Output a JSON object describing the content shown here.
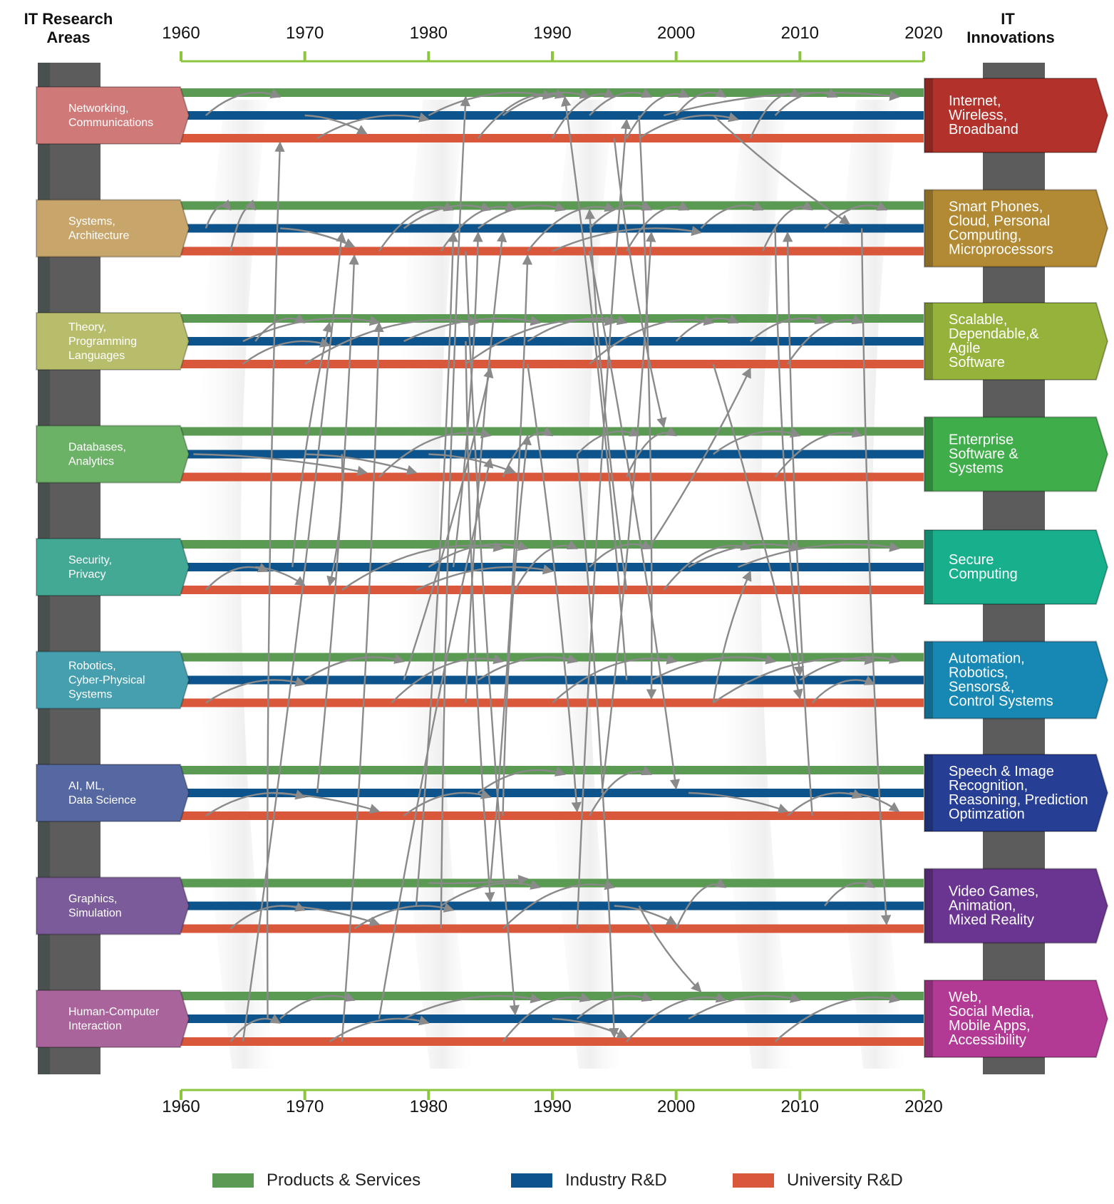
{
  "headers": {
    "left_line1": "IT Research",
    "left_line2": "Areas",
    "right_line1": "IT",
    "right_line2": "Innovations"
  },
  "years": [
    "1960",
    "1970",
    "1980",
    "1990",
    "2000",
    "2010",
    "2020"
  ],
  "colors": {
    "products": "#5a9a52",
    "industry": "#0d548c",
    "university": "#d9573a",
    "axis": "#8cc63f",
    "arrow": "#8a8a8a",
    "column": "#5c5c5c"
  },
  "rows": [
    {
      "area": [
        "Networking,",
        "Communications"
      ],
      "area_color": "#cf7a78",
      "innovation": [
        "Internet,",
        "Wireless,",
        "Broadband"
      ],
      "innovation_color": "#b2312a"
    },
    {
      "area": [
        "Systems,",
        "Architecture"
      ],
      "area_color": "#c8a66b",
      "innovation": [
        "Smart Phones,",
        "Cloud, Personal",
        "Computing,",
        "Microprocessors"
      ],
      "innovation_color": "#b18a33"
    },
    {
      "area": [
        "Theory,",
        "Programming",
        "Languages"
      ],
      "area_color": "#b8bd6c",
      "innovation": [
        "Scalable,",
        "Dependable,&",
        "Agile",
        "Software"
      ],
      "innovation_color": "#95b33a"
    },
    {
      "area": [
        "Databases,",
        "Analytics"
      ],
      "area_color": "#6bb266",
      "innovation": [
        "Enterprise",
        "Software &",
        "Systems"
      ],
      "innovation_color": "#3fae4a"
    },
    {
      "area": [
        "Security,",
        "Privacy"
      ],
      "area_color": "#43a894",
      "innovation": [
        "Secure",
        "Computing"
      ],
      "innovation_color": "#18af8d"
    },
    {
      "area": [
        "Robotics,",
        "Cyber-Physical",
        "Systems"
      ],
      "area_color": "#459fae",
      "innovation": [
        "Automation,",
        "Robotics,",
        "Sensors&,",
        "Control Systems"
      ],
      "innovation_color": "#1688b3"
    },
    {
      "area": [
        "AI, ML,",
        "Data Science"
      ],
      "area_color": "#5568a2",
      "innovation": [
        "Speech & Image",
        "Recognition,",
        "Reasoning, Prediction",
        "Optimzation"
      ],
      "innovation_color": "#273e95"
    },
    {
      "area": [
        "Graphics,",
        "Simulation"
      ],
      "area_color": "#7b5b99",
      "innovation": [
        "Video Games,",
        "Animation,",
        "Mixed Reality"
      ],
      "innovation_color": "#6a3590"
    },
    {
      "area": [
        "Human-Computer",
        "Interaction"
      ],
      "area_color": "#a8649b",
      "innovation": [
        "Web,",
        "Social Media,",
        "Mobile Apps,",
        "Accessibility"
      ],
      "innovation_color": "#b23a95"
    }
  ],
  "legend": [
    {
      "label": "Products & Services",
      "color": "#5a9a52"
    },
    {
      "label": "Industry R&D",
      "color": "#0d548c"
    },
    {
      "label": "University R&D",
      "color": "#d9573a"
    }
  ],
  "links": [
    [
      0,
      1,
      1962,
      0,
      0,
      1968
    ],
    [
      0,
      1,
      1970,
      0,
      2,
      1975
    ],
    [
      0,
      2,
      1971,
      0,
      1,
      1980
    ],
    [
      0,
      1,
      1980,
      0,
      0,
      1990
    ],
    [
      0,
      2,
      1984,
      0,
      0,
      1991
    ],
    [
      0,
      1,
      1986,
      0,
      0,
      1993
    ],
    [
      0,
      2,
      1990,
      0,
      0,
      1995
    ],
    [
      0,
      1,
      1993,
      0,
      0,
      1998
    ],
    [
      0,
      2,
      1996,
      0,
      0,
      2001
    ],
    [
      0,
      1,
      2000,
      0,
      0,
      2004
    ],
    [
      0,
      2,
      2006,
      0,
      0,
      2010
    ],
    [
      0,
      1,
      2008,
      0,
      0,
      2013
    ],
    [
      0,
      2,
      1997,
      0,
      1,
      2005
    ],
    [
      0,
      1,
      1999,
      0,
      0,
      2018
    ],
    [
      0,
      1,
      2003,
      1,
      1,
      2014
    ],
    [
      1,
      1,
      1962,
      1,
      0,
      1964
    ],
    [
      1,
      2,
      1964,
      1,
      0,
      1966
    ],
    [
      1,
      1,
      1968,
      1,
      2,
      1974
    ],
    [
      1,
      2,
      1976,
      1,
      0,
      1982
    ],
    [
      1,
      1,
      1978,
      1,
      0,
      1985
    ],
    [
      1,
      2,
      1981,
      1,
      0,
      1987
    ],
    [
      1,
      1,
      1984,
      1,
      0,
      1991
    ],
    [
      1,
      2,
      1988,
      1,
      0,
      1995
    ],
    [
      1,
      1,
      1993,
      1,
      0,
      1998
    ],
    [
      1,
      2,
      1996,
      1,
      0,
      2001
    ],
    [
      1,
      1,
      2002,
      1,
      0,
      2007
    ],
    [
      1,
      2,
      2007,
      1,
      0,
      2011
    ],
    [
      1,
      1,
      2012,
      1,
      0,
      2017
    ],
    [
      1,
      2,
      1990,
      1,
      1,
      2002
    ],
    [
      2,
      1,
      1965,
      2,
      0,
      1976
    ],
    [
      2,
      1,
      1966,
      2,
      0,
      1970
    ],
    [
      2,
      2,
      1970,
      2,
      0,
      1984
    ],
    [
      2,
      1,
      1978,
      2,
      0,
      1989
    ],
    [
      2,
      2,
      1983,
      2,
      0,
      1995
    ],
    [
      2,
      1,
      1988,
      2,
      0,
      1996
    ],
    [
      2,
      2,
      1993,
      2,
      0,
      2003
    ],
    [
      2,
      1,
      2000,
      2,
      0,
      2005
    ],
    [
      2,
      1,
      2006,
      2,
      0,
      2012
    ],
    [
      2,
      2,
      2009,
      2,
      0,
      2015
    ],
    [
      2,
      2,
      1965,
      2,
      1,
      1972
    ],
    [
      3,
      1,
      1961,
      3,
      2,
      1975
    ],
    [
      3,
      2,
      1976,
      3,
      0,
      1985
    ],
    [
      3,
      1,
      1980,
      3,
      2,
      1987
    ],
    [
      3,
      2,
      1986,
      3,
      0,
      1990
    ],
    [
      3,
      1,
      1992,
      3,
      0,
      1997
    ],
    [
      3,
      2,
      1996,
      3,
      0,
      2000
    ],
    [
      3,
      1,
      2003,
      3,
      0,
      2010
    ],
    [
      3,
      2,
      2008,
      3,
      0,
      2015
    ],
    [
      3,
      1,
      1970,
      3,
      2,
      1979
    ],
    [
      4,
      2,
      1962,
      4,
      1,
      1967
    ],
    [
      4,
      1,
      1966,
      4,
      2,
      1970
    ],
    [
      4,
      2,
      1973,
      4,
      0,
      1986
    ],
    [
      4,
      1,
      1980,
      4,
      0,
      1988
    ],
    [
      4,
      2,
      1987,
      4,
      0,
      1992
    ],
    [
      4,
      1,
      1993,
      4,
      0,
      1998
    ],
    [
      4,
      2,
      1999,
      4,
      0,
      2006
    ],
    [
      4,
      1,
      2005,
      4,
      0,
      2018
    ],
    [
      4,
      2,
      1979,
      4,
      1,
      1990
    ],
    [
      4,
      1,
      2001,
      4,
      0,
      2010
    ],
    [
      5,
      2,
      1962,
      5,
      1,
      1970
    ],
    [
      5,
      1,
      1970,
      5,
      0,
      1978
    ],
    [
      5,
      2,
      1977,
      5,
      0,
      1986
    ],
    [
      5,
      1,
      1984,
      5,
      0,
      1992
    ],
    [
      5,
      2,
      1990,
      5,
      0,
      2000
    ],
    [
      5,
      1,
      1998,
      5,
      0,
      2008
    ],
    [
      5,
      2,
      2003,
      5,
      0,
      2016
    ],
    [
      5,
      1,
      2010,
      5,
      0,
      2018
    ],
    [
      5,
      2,
      2011,
      5,
      1,
      2016
    ],
    [
      6,
      2,
      1962,
      6,
      1,
      1970
    ],
    [
      6,
      1,
      1967,
      6,
      2,
      1976
    ],
    [
      6,
      2,
      1978,
      6,
      1,
      1985
    ],
    [
      6,
      1,
      1984,
      6,
      0,
      1991
    ],
    [
      6,
      2,
      1993,
      6,
      0,
      1998
    ],
    [
      6,
      1,
      2001,
      6,
      2,
      2009
    ],
    [
      6,
      2,
      2009,
      6,
      1,
      2015
    ],
    [
      6,
      1,
      2014,
      6,
      2,
      2018
    ],
    [
      7,
      2,
      1964,
      7,
      1,
      1970
    ],
    [
      7,
      1,
      1968,
      7,
      2,
      1976
    ],
    [
      7,
      2,
      1974,
      7,
      1,
      1982
    ],
    [
      7,
      1,
      1981,
      7,
      0,
      1989
    ],
    [
      7,
      2,
      1986,
      7,
      0,
      1995
    ],
    [
      7,
      1,
      1995,
      7,
      2,
      2000
    ],
    [
      7,
      2,
      2000,
      7,
      0,
      2004
    ],
    [
      7,
      1,
      2012,
      7,
      0,
      2016
    ],
    [
      7,
      0,
      1980,
      7,
      0,
      1988
    ],
    [
      8,
      2,
      1964,
      8,
      1,
      1968
    ],
    [
      8,
      1,
      1968,
      8,
      0,
      1974
    ],
    [
      8,
      2,
      1972,
      8,
      1,
      1980
    ],
    [
      8,
      1,
      1978,
      8,
      0,
      1989
    ],
    [
      8,
      2,
      1986,
      8,
      0,
      1993
    ],
    [
      8,
      1,
      1992,
      8,
      0,
      1998
    ],
    [
      8,
      2,
      1996,
      8,
      0,
      2004
    ],
    [
      8,
      1,
      2001,
      8,
      0,
      2010
    ],
    [
      8,
      2,
      2008,
      8,
      0,
      2018
    ],
    [
      8,
      1,
      1990,
      8,
      2,
      1996
    ],
    [
      8,
      2,
      1965,
      1,
      1,
      1973
    ],
    [
      8,
      1,
      1967,
      0,
      2,
      1968
    ],
    [
      8,
      2,
      1973,
      2,
      0,
      1976
    ],
    [
      8,
      1,
      1976,
      3,
      1,
      1985
    ],
    [
      7,
      1,
      1979,
      1,
      1,
      1982
    ],
    [
      7,
      2,
      1981,
      0,
      0,
      1983
    ],
    [
      7,
      0,
      1985,
      1,
      2,
      1988
    ],
    [
      7,
      2,
      1992,
      0,
      1,
      1996
    ],
    [
      6,
      1,
      1971,
      1,
      2,
      1974
    ],
    [
      6,
      2,
      1986,
      3,
      0,
      1988
    ],
    [
      6,
      1,
      1994,
      1,
      1,
      1998
    ],
    [
      6,
      2,
      2011,
      1,
      1,
      2009
    ],
    [
      5,
      1,
      1978,
      2,
      2,
      1985
    ],
    [
      5,
      2,
      1983,
      1,
      1,
      1986
    ],
    [
      5,
      1,
      1996,
      0,
      0,
      1991
    ],
    [
      5,
      2,
      2003,
      4,
      1,
      2006
    ],
    [
      4,
      1,
      1982,
      1,
      1,
      1984
    ],
    [
      4,
      2,
      1996,
      1,
      0,
      1993
    ],
    [
      4,
      0,
      1998,
      2,
      2,
      2006
    ],
    [
      4,
      1,
      1969,
      2,
      0,
      1972
    ],
    [
      3,
      1,
      1992,
      8,
      2,
      1995
    ],
    [
      2,
      1,
      1983,
      7,
      1,
      1985
    ],
    [
      1,
      2,
      1993,
      6,
      1,
      2000
    ],
    [
      1,
      1,
      2015,
      7,
      2,
      2017
    ],
    [
      0,
      1,
      1997,
      5,
      2,
      1998
    ],
    [
      0,
      2,
      1995,
      3,
      0,
      1999
    ],
    [
      2,
      2,
      1988,
      6,
      2,
      1992
    ],
    [
      1,
      2,
      1983,
      8,
      1,
      1987
    ],
    [
      3,
      1,
      1973,
      4,
      2,
      1972
    ],
    [
      1,
      1,
      2008,
      5,
      1,
      2010
    ],
    [
      2,
      2,
      2003,
      5,
      2,
      2010
    ],
    [
      7,
      1,
      1997,
      8,
      0,
      2002
    ]
  ]
}
